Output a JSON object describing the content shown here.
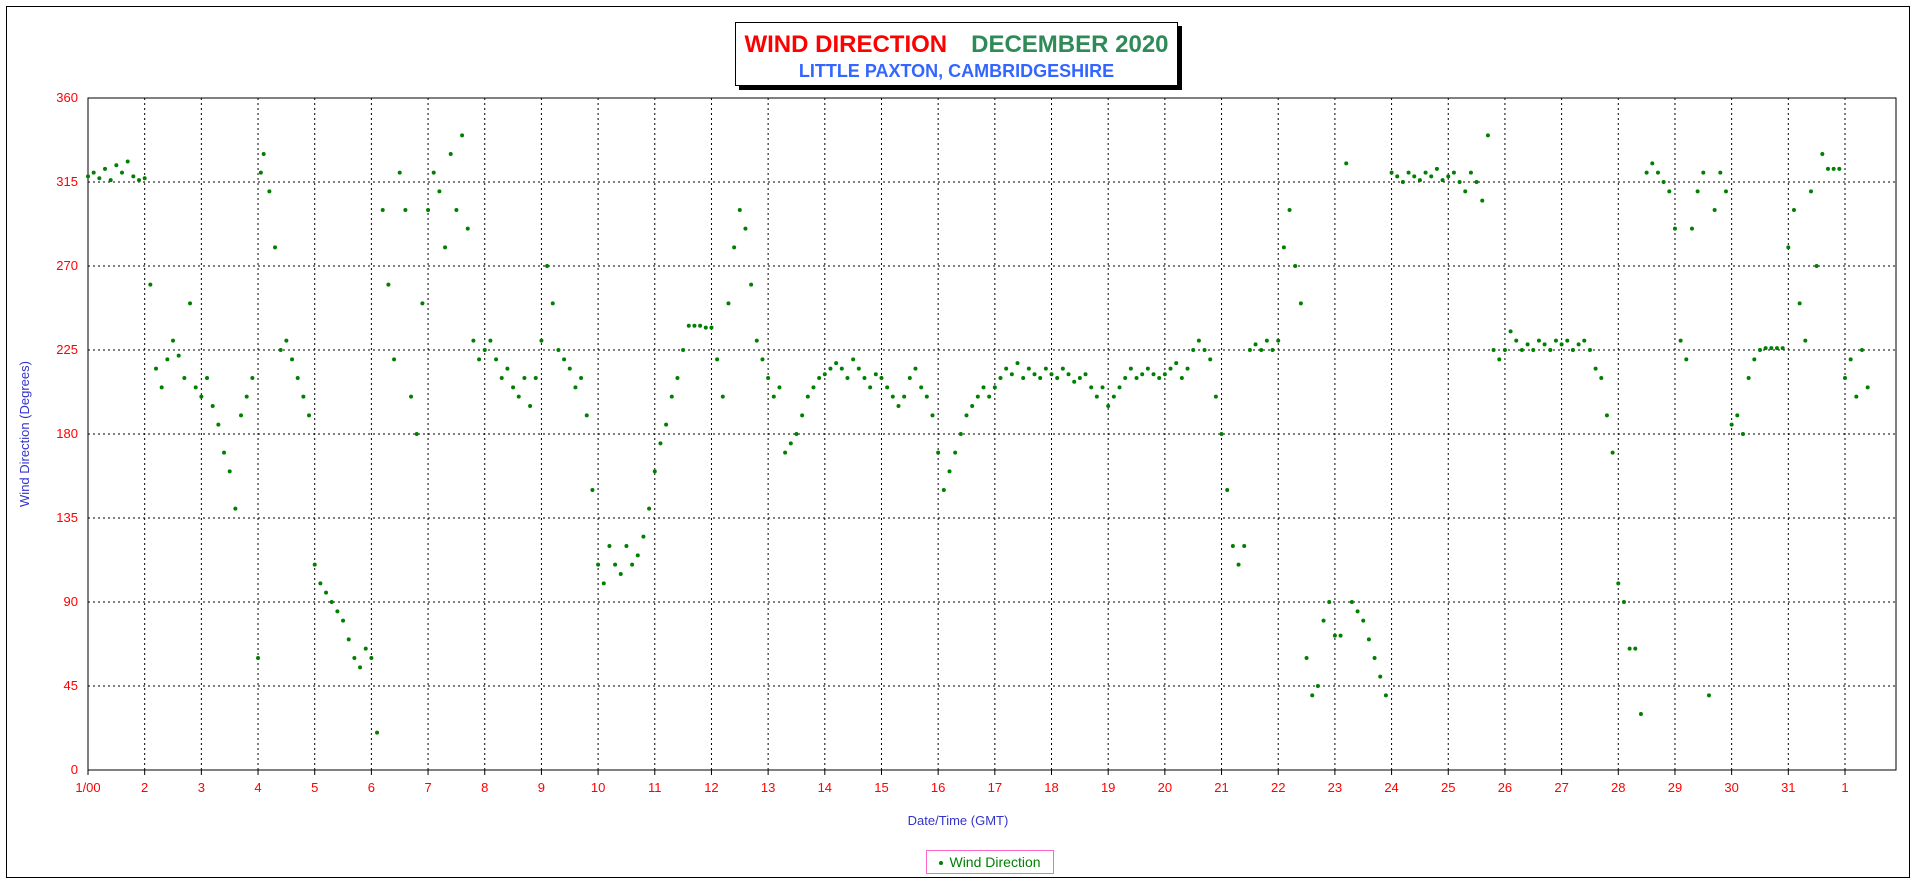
{
  "chart_data": {
    "type": "scatter",
    "title_part1": "WIND DIRECTION",
    "title_part2": "DECEMBER 2020",
    "subtitle": "LITTLE PAXTON, CAMBRIDGESHIRE",
    "xlabel": "Date/Time (GMT)",
    "ylabel": "Wind Direction (Degrees)",
    "ylim": [
      0,
      360
    ],
    "xlim": [
      1,
      32
    ],
    "yticks": [
      0,
      45,
      90,
      135,
      180,
      225,
      270,
      315,
      360
    ],
    "xtick_labels": [
      "1/00",
      "2",
      "3",
      "4",
      "5",
      "6",
      "7",
      "8",
      "9",
      "10",
      "11",
      "12",
      "13",
      "14",
      "15",
      "16",
      "17",
      "18",
      "19",
      "20",
      "21",
      "22",
      "23",
      "24",
      "25",
      "26",
      "27",
      "28",
      "29",
      "30",
      "31",
      "1"
    ],
    "grid": true,
    "legend": {
      "position": "bottom-center",
      "entries": [
        "Wind Direction"
      ]
    },
    "series": [
      {
        "name": "Wind Direction",
        "color": "#008000",
        "points": [
          [
            1.0,
            318
          ],
          [
            1.1,
            320
          ],
          [
            1.2,
            317
          ],
          [
            1.3,
            322
          ],
          [
            1.4,
            316
          ],
          [
            1.5,
            324
          ],
          [
            1.6,
            320
          ],
          [
            1.7,
            326
          ],
          [
            1.8,
            318
          ],
          [
            1.9,
            316
          ],
          [
            2.0,
            317
          ],
          [
            2.1,
            260
          ],
          [
            2.2,
            215
          ],
          [
            2.3,
            205
          ],
          [
            2.4,
            220
          ],
          [
            2.5,
            230
          ],
          [
            2.6,
            222
          ],
          [
            2.7,
            210
          ],
          [
            2.8,
            250
          ],
          [
            2.9,
            205
          ],
          [
            3.0,
            200
          ],
          [
            3.1,
            210
          ],
          [
            3.2,
            195
          ],
          [
            3.3,
            185
          ],
          [
            3.4,
            170
          ],
          [
            3.5,
            160
          ],
          [
            3.6,
            140
          ],
          [
            3.7,
            190
          ],
          [
            3.8,
            200
          ],
          [
            3.9,
            210
          ],
          [
            4.0,
            60
          ],
          [
            4.05,
            320
          ],
          [
            4.1,
            330
          ],
          [
            4.2,
            310
          ],
          [
            4.3,
            280
          ],
          [
            4.4,
            225
          ],
          [
            4.5,
            230
          ],
          [
            4.6,
            220
          ],
          [
            4.7,
            210
          ],
          [
            4.8,
            200
          ],
          [
            4.9,
            190
          ],
          [
            5.0,
            110
          ],
          [
            5.1,
            100
          ],
          [
            5.2,
            95
          ],
          [
            5.3,
            90
          ],
          [
            5.4,
            85
          ],
          [
            5.5,
            80
          ],
          [
            5.6,
            70
          ],
          [
            5.7,
            60
          ],
          [
            5.8,
            55
          ],
          [
            5.9,
            65
          ],
          [
            6.0,
            60
          ],
          [
            6.1,
            20
          ],
          [
            6.2,
            300
          ],
          [
            6.3,
            260
          ],
          [
            6.4,
            220
          ],
          [
            6.5,
            320
          ],
          [
            6.6,
            300
          ],
          [
            6.7,
            200
          ],
          [
            6.8,
            180
          ],
          [
            6.9,
            250
          ],
          [
            7.0,
            300
          ],
          [
            7.1,
            320
          ],
          [
            7.2,
            310
          ],
          [
            7.3,
            280
          ],
          [
            7.4,
            330
          ],
          [
            7.5,
            300
          ],
          [
            7.6,
            340
          ],
          [
            7.7,
            290
          ],
          [
            7.8,
            230
          ],
          [
            7.9,
            220
          ],
          [
            8.0,
            225
          ],
          [
            8.1,
            230
          ],
          [
            8.2,
            220
          ],
          [
            8.3,
            210
          ],
          [
            8.4,
            215
          ],
          [
            8.5,
            205
          ],
          [
            8.6,
            200
          ],
          [
            8.7,
            210
          ],
          [
            8.8,
            195
          ],
          [
            8.9,
            210
          ],
          [
            9.0,
            230
          ],
          [
            9.1,
            270
          ],
          [
            9.2,
            250
          ],
          [
            9.3,
            225
          ],
          [
            9.4,
            220
          ],
          [
            9.5,
            215
          ],
          [
            9.6,
            205
          ],
          [
            9.7,
            210
          ],
          [
            9.8,
            190
          ],
          [
            9.9,
            150
          ],
          [
            10.0,
            110
          ],
          [
            10.1,
            100
          ],
          [
            10.2,
            120
          ],
          [
            10.3,
            110
          ],
          [
            10.4,
            105
          ],
          [
            10.5,
            120
          ],
          [
            10.6,
            110
          ],
          [
            10.7,
            115
          ],
          [
            10.8,
            125
          ],
          [
            10.9,
            140
          ],
          [
            11.0,
            160
          ],
          [
            11.1,
            175
          ],
          [
            11.2,
            185
          ],
          [
            11.3,
            200
          ],
          [
            11.4,
            210
          ],
          [
            11.5,
            225
          ],
          [
            11.6,
            238
          ],
          [
            11.7,
            238
          ],
          [
            11.8,
            238
          ],
          [
            11.9,
            237
          ],
          [
            12.0,
            237
          ],
          [
            12.1,
            220
          ],
          [
            12.2,
            200
          ],
          [
            12.3,
            250
          ],
          [
            12.4,
            280
          ],
          [
            12.5,
            300
          ],
          [
            12.6,
            290
          ],
          [
            12.7,
            260
          ],
          [
            12.8,
            230
          ],
          [
            12.9,
            220
          ],
          [
            13.0,
            210
          ],
          [
            13.1,
            200
          ],
          [
            13.2,
            205
          ],
          [
            13.3,
            170
          ],
          [
            13.4,
            175
          ],
          [
            13.5,
            180
          ],
          [
            13.6,
            190
          ],
          [
            13.7,
            200
          ],
          [
            13.8,
            205
          ],
          [
            13.9,
            210
          ],
          [
            14.0,
            212
          ],
          [
            14.1,
            215
          ],
          [
            14.2,
            218
          ],
          [
            14.3,
            215
          ],
          [
            14.4,
            210
          ],
          [
            14.5,
            220
          ],
          [
            14.6,
            215
          ],
          [
            14.7,
            210
          ],
          [
            14.8,
            205
          ],
          [
            14.9,
            212
          ],
          [
            15.0,
            210
          ],
          [
            15.1,
            205
          ],
          [
            15.2,
            200
          ],
          [
            15.3,
            195
          ],
          [
            15.4,
            200
          ],
          [
            15.5,
            210
          ],
          [
            15.6,
            215
          ],
          [
            15.7,
            205
          ],
          [
            15.8,
            200
          ],
          [
            15.9,
            190
          ],
          [
            16.0,
            170
          ],
          [
            16.1,
            150
          ],
          [
            16.2,
            160
          ],
          [
            16.3,
            170
          ],
          [
            16.4,
            180
          ],
          [
            16.5,
            190
          ],
          [
            16.6,
            195
          ],
          [
            16.7,
            200
          ],
          [
            16.8,
            205
          ],
          [
            16.9,
            200
          ],
          [
            17.0,
            205
          ],
          [
            17.1,
            210
          ],
          [
            17.2,
            215
          ],
          [
            17.3,
            212
          ],
          [
            17.4,
            218
          ],
          [
            17.5,
            210
          ],
          [
            17.6,
            215
          ],
          [
            17.7,
            212
          ],
          [
            17.8,
            210
          ],
          [
            17.9,
            215
          ],
          [
            18.0,
            212
          ],
          [
            18.1,
            210
          ],
          [
            18.2,
            215
          ],
          [
            18.3,
            212
          ],
          [
            18.4,
            208
          ],
          [
            18.5,
            210
          ],
          [
            18.6,
            212
          ],
          [
            18.7,
            205
          ],
          [
            18.8,
            200
          ],
          [
            18.9,
            205
          ],
          [
            19.0,
            195
          ],
          [
            19.1,
            200
          ],
          [
            19.2,
            205
          ],
          [
            19.3,
            210
          ],
          [
            19.4,
            215
          ],
          [
            19.5,
            210
          ],
          [
            19.6,
            212
          ],
          [
            19.7,
            215
          ],
          [
            19.8,
            212
          ],
          [
            19.9,
            210
          ],
          [
            20.0,
            212
          ],
          [
            20.1,
            215
          ],
          [
            20.2,
            218
          ],
          [
            20.3,
            210
          ],
          [
            20.4,
            215
          ],
          [
            20.5,
            225
          ],
          [
            20.6,
            230
          ],
          [
            20.7,
            225
          ],
          [
            20.8,
            220
          ],
          [
            20.9,
            200
          ],
          [
            21.0,
            180
          ],
          [
            21.1,
            150
          ],
          [
            21.2,
            120
          ],
          [
            21.3,
            110
          ],
          [
            21.4,
            120
          ],
          [
            21.5,
            225
          ],
          [
            21.6,
            228
          ],
          [
            21.7,
            225
          ],
          [
            21.8,
            230
          ],
          [
            21.9,
            225
          ],
          [
            22.0,
            230
          ],
          [
            22.1,
            280
          ],
          [
            22.2,
            300
          ],
          [
            22.3,
            270
          ],
          [
            22.4,
            250
          ],
          [
            22.5,
            60
          ],
          [
            22.6,
            40
          ],
          [
            22.7,
            45
          ],
          [
            22.8,
            80
          ],
          [
            22.9,
            90
          ],
          [
            23.0,
            72
          ],
          [
            23.1,
            72
          ],
          [
            23.2,
            325
          ],
          [
            23.3,
            90
          ],
          [
            23.4,
            85
          ],
          [
            23.5,
            80
          ],
          [
            23.6,
            70
          ],
          [
            23.7,
            60
          ],
          [
            23.8,
            50
          ],
          [
            23.9,
            40
          ],
          [
            24.0,
            320
          ],
          [
            24.1,
            318
          ],
          [
            24.2,
            315
          ],
          [
            24.3,
            320
          ],
          [
            24.4,
            318
          ],
          [
            24.5,
            316
          ],
          [
            24.6,
            320
          ],
          [
            24.7,
            318
          ],
          [
            24.8,
            322
          ],
          [
            24.9,
            316
          ],
          [
            25.0,
            318
          ],
          [
            25.1,
            320
          ],
          [
            25.2,
            315
          ],
          [
            25.3,
            310
          ],
          [
            25.4,
            320
          ],
          [
            25.5,
            315
          ],
          [
            25.6,
            305
          ],
          [
            25.7,
            340
          ],
          [
            25.8,
            225
          ],
          [
            25.9,
            220
          ],
          [
            26.0,
            225
          ],
          [
            26.1,
            235
          ],
          [
            26.2,
            230
          ],
          [
            26.3,
            225
          ],
          [
            26.4,
            228
          ],
          [
            26.5,
            225
          ],
          [
            26.6,
            230
          ],
          [
            26.7,
            228
          ],
          [
            26.8,
            225
          ],
          [
            26.9,
            230
          ],
          [
            27.0,
            228
          ],
          [
            27.1,
            230
          ],
          [
            27.2,
            225
          ],
          [
            27.3,
            228
          ],
          [
            27.4,
            230
          ],
          [
            27.5,
            225
          ],
          [
            27.6,
            215
          ],
          [
            27.7,
            210
          ],
          [
            27.8,
            190
          ],
          [
            27.9,
            170
          ],
          [
            28.0,
            100
          ],
          [
            28.1,
            90
          ],
          [
            28.2,
            65
          ],
          [
            28.3,
            65
          ],
          [
            28.4,
            30
          ],
          [
            28.5,
            320
          ],
          [
            28.6,
            325
          ],
          [
            28.7,
            320
          ],
          [
            28.8,
            315
          ],
          [
            28.9,
            310
          ],
          [
            29.0,
            290
          ],
          [
            29.1,
            230
          ],
          [
            29.2,
            220
          ],
          [
            29.3,
            290
          ],
          [
            29.4,
            310
          ],
          [
            29.5,
            320
          ],
          [
            29.6,
            40
          ],
          [
            29.7,
            300
          ],
          [
            29.8,
            320
          ],
          [
            29.9,
            310
          ],
          [
            30.0,
            185
          ],
          [
            30.1,
            190
          ],
          [
            30.2,
            180
          ],
          [
            30.3,
            210
          ],
          [
            30.4,
            220
          ],
          [
            30.5,
            225
          ],
          [
            30.6,
            226
          ],
          [
            30.7,
            226
          ],
          [
            30.8,
            226
          ],
          [
            30.9,
            226
          ],
          [
            31.0,
            280
          ],
          [
            31.1,
            300
          ],
          [
            31.2,
            250
          ],
          [
            31.3,
            230
          ],
          [
            31.4,
            310
          ],
          [
            31.5,
            270
          ],
          [
            31.6,
            330
          ],
          [
            31.7,
            322
          ],
          [
            31.8,
            322
          ],
          [
            31.9,
            322
          ],
          [
            32.0,
            210
          ],
          [
            32.1,
            220
          ],
          [
            32.2,
            200
          ],
          [
            32.3,
            225
          ],
          [
            32.4,
            205
          ]
        ]
      }
    ]
  }
}
